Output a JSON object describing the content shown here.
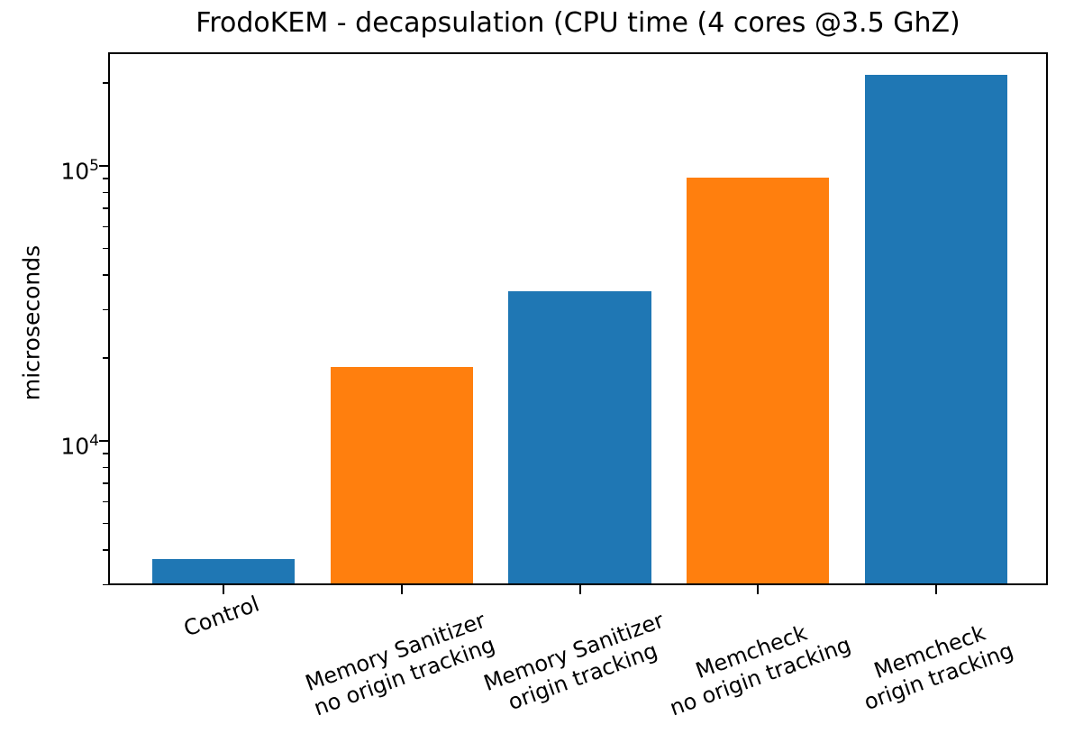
{
  "chart_data": {
    "type": "bar",
    "title": "FrodoKEM - decapsulation (CPU time (4 cores @3.5 GhZ)",
    "xlabel": "",
    "ylabel": "microseconds",
    "yscale": "log",
    "ylim": [
      2940,
      254600
    ],
    "grid": false,
    "legend": null,
    "categories": [
      [
        "Control"
      ],
      [
        "Memory Sanitizer",
        "no origin tracking"
      ],
      [
        "Memory Sanitizer",
        "origin tracking"
      ],
      [
        "Memcheck",
        "no origin tracking"
      ],
      [
        "Memcheck",
        "origin tracking"
      ]
    ],
    "values": [
      3600,
      18000,
      34000,
      88000,
      207000
    ],
    "bar_colors": [
      "#1f77b4",
      "#ff7f0e",
      "#1f77b4",
      "#ff7f0e",
      "#1f77b4"
    ],
    "yticks": [
      {
        "value": 10000,
        "label_base": "10",
        "label_exp": "4"
      },
      {
        "value": 100000,
        "label_base": "10",
        "label_exp": "5"
      }
    ]
  }
}
